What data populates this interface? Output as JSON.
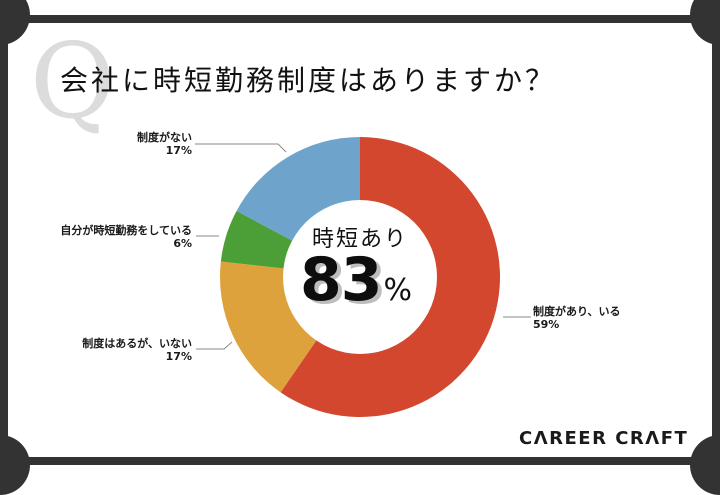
{
  "header": {
    "watermark": "Q",
    "title": "会社に時短勤務制度はありますか？"
  },
  "center": {
    "label": "時短あり",
    "value": "83",
    "unit": "%"
  },
  "labels": [
    {
      "name": "制度があり、いる",
      "pct": "59%"
    },
    {
      "name": "制度はあるが、いない",
      "pct": "17%"
    },
    {
      "name": "自分が時短勤務をしている",
      "pct": "6%"
    },
    {
      "name": "制度がない",
      "pct": "17%"
    }
  ],
  "logo": "CΛREER CRΛFT",
  "colors": {
    "red": "#d2472e",
    "orange": "#dea23c",
    "green": "#4c9e36",
    "blue": "#6ea4cc",
    "frame": "#333333",
    "watermark": "#dcdcdc"
  },
  "chart_data": {
    "type": "pie",
    "title": "会社に時短勤務制度はありますか？",
    "subtitle": "時短あり 83%",
    "categories": [
      "制度があり、いる",
      "制度はあるが、いない",
      "自分が時短勤務をしている",
      "制度がない"
    ],
    "values": [
      59,
      17,
      6,
      17
    ],
    "unit": "%",
    "colors": [
      "#d2472e",
      "#dea23c",
      "#4c9e36",
      "#6ea4cc"
    ],
    "donut": true,
    "start_angle": "12 o'clock, clockwise",
    "center_annotation": {
      "label": "時短あり",
      "value": 83,
      "unit": "%"
    },
    "legend": "none (callout labels with leader lines)"
  }
}
